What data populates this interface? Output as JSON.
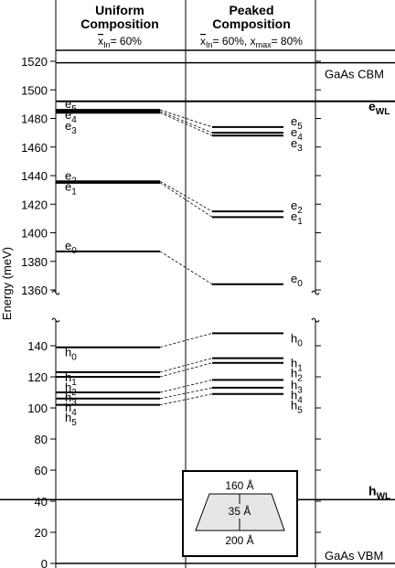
{
  "header": {
    "uniform_title_1": "Uniform",
    "uniform_title_2": "Composition",
    "uniform_sub_x": "x",
    "uniform_sub_in": "In",
    "uniform_sub_val": "= 60%",
    "peaked_title_1": "Peaked",
    "peaked_title_2": "Composition",
    "peaked_sub_x": "x",
    "peaked_sub_in": "In",
    "peaked_sub_mid": "= 60%, x",
    "peaked_sub_max": "max",
    "peaked_sub_end": "= 80%"
  },
  "axis": {
    "ylabel": "Energy (meV)",
    "upper_ticks": [
      "1520",
      "1500",
      "1480",
      "1460",
      "1440",
      "1420",
      "1400",
      "1380",
      "1360"
    ],
    "lower_ticks": [
      "140",
      "120",
      "100",
      "80",
      "60",
      "40",
      "20",
      "0"
    ]
  },
  "right_labels": {
    "cbm": "GaAs CBM",
    "vbm": "GaAs VBM",
    "ewl_e": "e",
    "ewl_sub": "WL",
    "hwl_h": "h",
    "hwl_sub": "WL"
  },
  "levels": {
    "uniform_e": [
      {
        "base": "e",
        "sub": "5",
        "value": 1486
      },
      {
        "base": "e",
        "sub": "4",
        "value": 1485
      },
      {
        "base": "e",
        "sub": "3",
        "value": 1484
      },
      {
        "base": "e",
        "sub": "2",
        "value": 1436
      },
      {
        "base": "e",
        "sub": "1",
        "value": 1435
      },
      {
        "base": "e",
        "sub": "0",
        "value": 1387
      }
    ],
    "peaked_e": [
      {
        "base": "e",
        "sub": "5",
        "value": 1474
      },
      {
        "base": "e",
        "sub": "4",
        "value": 1470
      },
      {
        "base": "e",
        "sub": "3",
        "value": 1468
      },
      {
        "base": "e",
        "sub": "2",
        "value": 1415
      },
      {
        "base": "e",
        "sub": "1",
        "value": 1411
      },
      {
        "base": "e",
        "sub": "0",
        "value": 1364
      }
    ],
    "uniform_h": [
      {
        "base": "h",
        "sub": "0",
        "value": 139
      },
      {
        "base": "h",
        "sub": "1",
        "value": 123
      },
      {
        "base": "h",
        "sub": "2",
        "value": 120
      },
      {
        "base": "h",
        "sub": "3",
        "value": 110
      },
      {
        "base": "h",
        "sub": "4",
        "value": 106
      },
      {
        "base": "h",
        "sub": "5",
        "value": 102
      }
    ],
    "peaked_h": [
      {
        "base": "h",
        "sub": "0",
        "value": 148
      },
      {
        "base": "h",
        "sub": "1",
        "value": 132
      },
      {
        "base": "h",
        "sub": "2",
        "value": 129
      },
      {
        "base": "h",
        "sub": "3",
        "value": 118
      },
      {
        "base": "h",
        "sub": "4",
        "value": 113
      },
      {
        "base": "h",
        "sub": "5",
        "value": 109
      }
    ],
    "cbm_value": 1519,
    "ewl_value": 1492,
    "hwl_value": 41,
    "vbm_value": 0
  },
  "inset": {
    "top_label": "160 Å",
    "mid_label": "35 Å",
    "bottom_label": "200 Å"
  }
}
